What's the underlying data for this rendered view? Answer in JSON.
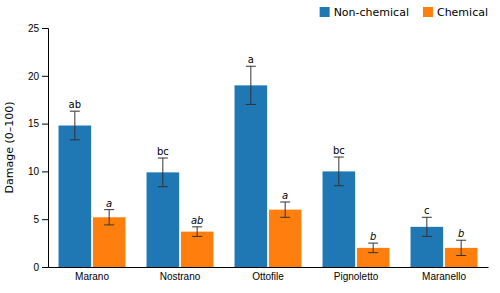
{
  "chart_data": {
    "type": "bar",
    "categories": [
      "Marano",
      "Nostrano",
      "Ottofile",
      "Pignoletto",
      "Maranello"
    ],
    "series": [
      {
        "name": "Non-chemical",
        "values": [
          14.8,
          9.9,
          19.0,
          10.0,
          4.2
        ],
        "errors": [
          1.5,
          1.5,
          2.0,
          1.5,
          1.0
        ],
        "labels": [
          "ab",
          "bc",
          "a",
          "bc",
          "c"
        ]
      },
      {
        "name": "Chemical",
        "values": [
          5.2,
          3.7,
          6.0,
          2.0,
          2.0
        ],
        "errors": [
          0.8,
          0.5,
          0.8,
          0.5,
          0.8
        ],
        "labels": [
          "a",
          "ab",
          "a",
          "b",
          "b"
        ]
      }
    ],
    "y_label": "Damage (0–100)",
    "ylim": [
      0,
      25
    ],
    "yticks": [
      0,
      5,
      10,
      15,
      20,
      25
    ],
    "grid": false,
    "legend": "upper right"
  }
}
